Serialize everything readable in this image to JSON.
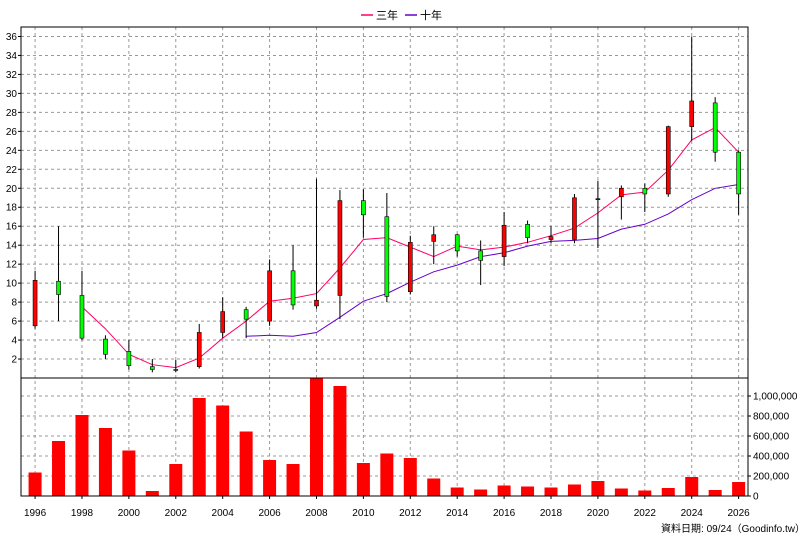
{
  "legend": [
    {
      "label": "三年",
      "color": "#ff0066"
    },
    {
      "label": "十年",
      "color": "#6600cc"
    }
  ],
  "footer": {
    "text": "資料日期: 09/24（Goodinfo.tw）"
  },
  "chart_data": [
    {
      "type": "candlestick",
      "x_tick_labels": [
        "1996",
        "1998",
        "2000",
        "2002",
        "2004",
        "2006",
        "2008",
        "2010",
        "2012",
        "2014",
        "2016",
        "2018",
        "2020",
        "2022",
        "2024",
        "2026"
      ],
      "y_tick_labels": [
        "2",
        "4",
        "6",
        "8",
        "10",
        "12",
        "14",
        "16",
        "18",
        "20",
        "22",
        "24",
        "26",
        "28",
        "30",
        "32",
        "34",
        "36"
      ],
      "ylim": [
        0,
        37
      ],
      "xlim": [
        1995.4,
        2026.4
      ],
      "grid": true,
      "colors": {
        "up": "#ff0000",
        "down": "#00ff00"
      },
      "candles": [
        {
          "year": 1996,
          "open": 5.5,
          "close": 10.3,
          "high": 11.3,
          "low": 5.2
        },
        {
          "year": 1997,
          "open": 10.2,
          "close": 8.8,
          "high": 16.0,
          "low": 6.0
        },
        {
          "year": 1998,
          "open": 8.7,
          "close": 4.2,
          "high": 11.3,
          "low": 4.0
        },
        {
          "year": 1999,
          "open": 4.1,
          "close": 2.5,
          "high": 4.5,
          "low": 2.0
        },
        {
          "year": 2000,
          "open": 2.8,
          "close": 1.3,
          "high": 4.0,
          "low": 0.9
        },
        {
          "year": 2001,
          "open": 1.2,
          "close": 0.9,
          "high": 2.0,
          "low": 0.6
        },
        {
          "year": 2002,
          "open": 0.9,
          "close": 0.8,
          "high": 1.9,
          "low": 0.6
        },
        {
          "year": 2003,
          "open": 1.2,
          "close": 4.8,
          "high": 5.7,
          "low": 1.0
        },
        {
          "year": 2004,
          "open": 4.8,
          "close": 7.0,
          "high": 8.5,
          "low": 4.2
        },
        {
          "year": 2005,
          "open": 7.2,
          "close": 6.2,
          "high": 7.5,
          "low": 4.2
        },
        {
          "year": 2006,
          "open": 6.0,
          "close": 11.3,
          "high": 12.5,
          "low": 5.5
        },
        {
          "year": 2007,
          "open": 11.3,
          "close": 7.7,
          "high": 14.0,
          "low": 7.2
        },
        {
          "year": 2008,
          "open": 7.6,
          "close": 8.2,
          "high": 21.0,
          "low": 7.3
        },
        {
          "year": 2009,
          "open": 8.7,
          "close": 18.7,
          "high": 19.8,
          "low": 6.2
        },
        {
          "year": 2010,
          "open": 18.7,
          "close": 17.2,
          "high": 19.9,
          "low": 14.8
        },
        {
          "year": 2011,
          "open": 17.0,
          "close": 8.6,
          "high": 19.5,
          "low": 8.0
        },
        {
          "year": 2012,
          "open": 9.1,
          "close": 14.3,
          "high": 15.0,
          "low": 8.8
        },
        {
          "year": 2013,
          "open": 14.4,
          "close": 15.1,
          "high": 16.0,
          "low": 12.0
        },
        {
          "year": 2014,
          "open": 15.1,
          "close": 13.4,
          "high": 15.2,
          "low": 12.8
        },
        {
          "year": 2015,
          "open": 13.4,
          "close": 12.4,
          "high": 14.5,
          "low": 9.8
        },
        {
          "year": 2016,
          "open": 12.8,
          "close": 16.1,
          "high": 17.5,
          "low": 11.8
        },
        {
          "year": 2017,
          "open": 16.2,
          "close": 14.8,
          "high": 16.6,
          "low": 14.2
        },
        {
          "year": 2018,
          "open": 14.6,
          "close": 14.9,
          "high": 16.0,
          "low": 14.2
        },
        {
          "year": 2019,
          "open": 14.6,
          "close": 19.0,
          "high": 19.4,
          "low": 14.2
        },
        {
          "year": 2020,
          "open": 18.8,
          "close": 18.9,
          "high": 20.8,
          "low": 13.7
        },
        {
          "year": 2021,
          "open": 19.1,
          "close": 20.0,
          "high": 20.3,
          "low": 16.7
        },
        {
          "year": 2022,
          "open": 20.0,
          "close": 19.4,
          "high": 20.5,
          "low": 17.5
        },
        {
          "year": 2023,
          "open": 19.4,
          "close": 26.5,
          "high": 26.6,
          "low": 19.1
        },
        {
          "year": 2024,
          "open": 26.5,
          "close": 29.2,
          "high": 36.0,
          "low": 25.0
        },
        {
          "year": 2025,
          "open": 29.0,
          "close": 23.8,
          "high": 29.6,
          "low": 22.8
        },
        {
          "year": 2026,
          "open": 23.8,
          "close": 19.4,
          "high": 24.0,
          "low": 17.2
        }
      ],
      "series": [
        {
          "name": "三年",
          "color": "#ff0066",
          "points": [
            [
              1998,
              7.5
            ],
            [
              1999,
              5.2
            ],
            [
              2000,
              2.5
            ],
            [
              2001,
              1.4
            ],
            [
              2002,
              1.1
            ],
            [
              2003,
              2.1
            ],
            [
              2004,
              4.2
            ],
            [
              2005,
              6.0
            ],
            [
              2006,
              8.1
            ],
            [
              2007,
              8.4
            ],
            [
              2008,
              8.9
            ],
            [
              2009,
              11.6
            ],
            [
              2010,
              14.6
            ],
            [
              2011,
              14.8
            ],
            [
              2012,
              13.8
            ],
            [
              2013,
              12.8
            ],
            [
              2014,
              13.9
            ],
            [
              2015,
              13.5
            ],
            [
              2016,
              13.8
            ],
            [
              2017,
              14.3
            ],
            [
              2018,
              15.0
            ],
            [
              2019,
              15.8
            ],
            [
              2020,
              17.4
            ],
            [
              2021,
              19.3
            ],
            [
              2022,
              19.6
            ],
            [
              2023,
              21.9
            ],
            [
              2024,
              25.1
            ],
            [
              2025,
              26.4
            ],
            [
              2026,
              23.8
            ]
          ]
        },
        {
          "name": "十年",
          "color": "#6600cc",
          "points": [
            [
              2005,
              4.4
            ],
            [
              2006,
              4.5
            ],
            [
              2007,
              4.4
            ],
            [
              2008,
              4.8
            ],
            [
              2009,
              6.4
            ],
            [
              2010,
              8.1
            ],
            [
              2011,
              8.9
            ],
            [
              2012,
              10.1
            ],
            [
              2013,
              11.2
            ],
            [
              2014,
              11.9
            ],
            [
              2015,
              12.8
            ],
            [
              2016,
              13.2
            ],
            [
              2017,
              13.9
            ],
            [
              2018,
              14.4
            ],
            [
              2019,
              14.5
            ],
            [
              2020,
              14.7
            ],
            [
              2021,
              15.7
            ],
            [
              2022,
              16.2
            ],
            [
              2023,
              17.3
            ],
            [
              2024,
              18.8
            ],
            [
              2025,
              20.0
            ],
            [
              2026,
              20.4
            ]
          ]
        }
      ]
    },
    {
      "type": "bar",
      "y_tick_labels": [
        "0",
        "200,000",
        "400,000",
        "600,000",
        "800,000",
        "1,000,000"
      ],
      "ylim": [
        0,
        1180000
      ],
      "grid": true,
      "color": "#ff0000",
      "bars": [
        {
          "year": 1996,
          "value": 235000
        },
        {
          "year": 1997,
          "value": 550000
        },
        {
          "year": 1998,
          "value": 810000
        },
        {
          "year": 1999,
          "value": 680000
        },
        {
          "year": 2000,
          "value": 455000
        },
        {
          "year": 2001,
          "value": 50000
        },
        {
          "year": 2002,
          "value": 320000
        },
        {
          "year": 2003,
          "value": 980000
        },
        {
          "year": 2004,
          "value": 905000
        },
        {
          "year": 2005,
          "value": 645000
        },
        {
          "year": 2006,
          "value": 360000
        },
        {
          "year": 2007,
          "value": 320000
        },
        {
          "year": 2008,
          "value": 1180000
        },
        {
          "year": 2009,
          "value": 1100000
        },
        {
          "year": 2010,
          "value": 330000
        },
        {
          "year": 2011,
          "value": 425000
        },
        {
          "year": 2012,
          "value": 380000
        },
        {
          "year": 2013,
          "value": 175000
        },
        {
          "year": 2014,
          "value": 85000
        },
        {
          "year": 2015,
          "value": 65000
        },
        {
          "year": 2016,
          "value": 105000
        },
        {
          "year": 2017,
          "value": 95000
        },
        {
          "year": 2018,
          "value": 85000
        },
        {
          "year": 2019,
          "value": 115000
        },
        {
          "year": 2020,
          "value": 150000
        },
        {
          "year": 2021,
          "value": 75000
        },
        {
          "year": 2022,
          "value": 55000
        },
        {
          "year": 2023,
          "value": 80000
        },
        {
          "year": 2024,
          "value": 190000
        },
        {
          "year": 2025,
          "value": 60000
        },
        {
          "year": 2026,
          "value": 140000
        }
      ]
    }
  ]
}
